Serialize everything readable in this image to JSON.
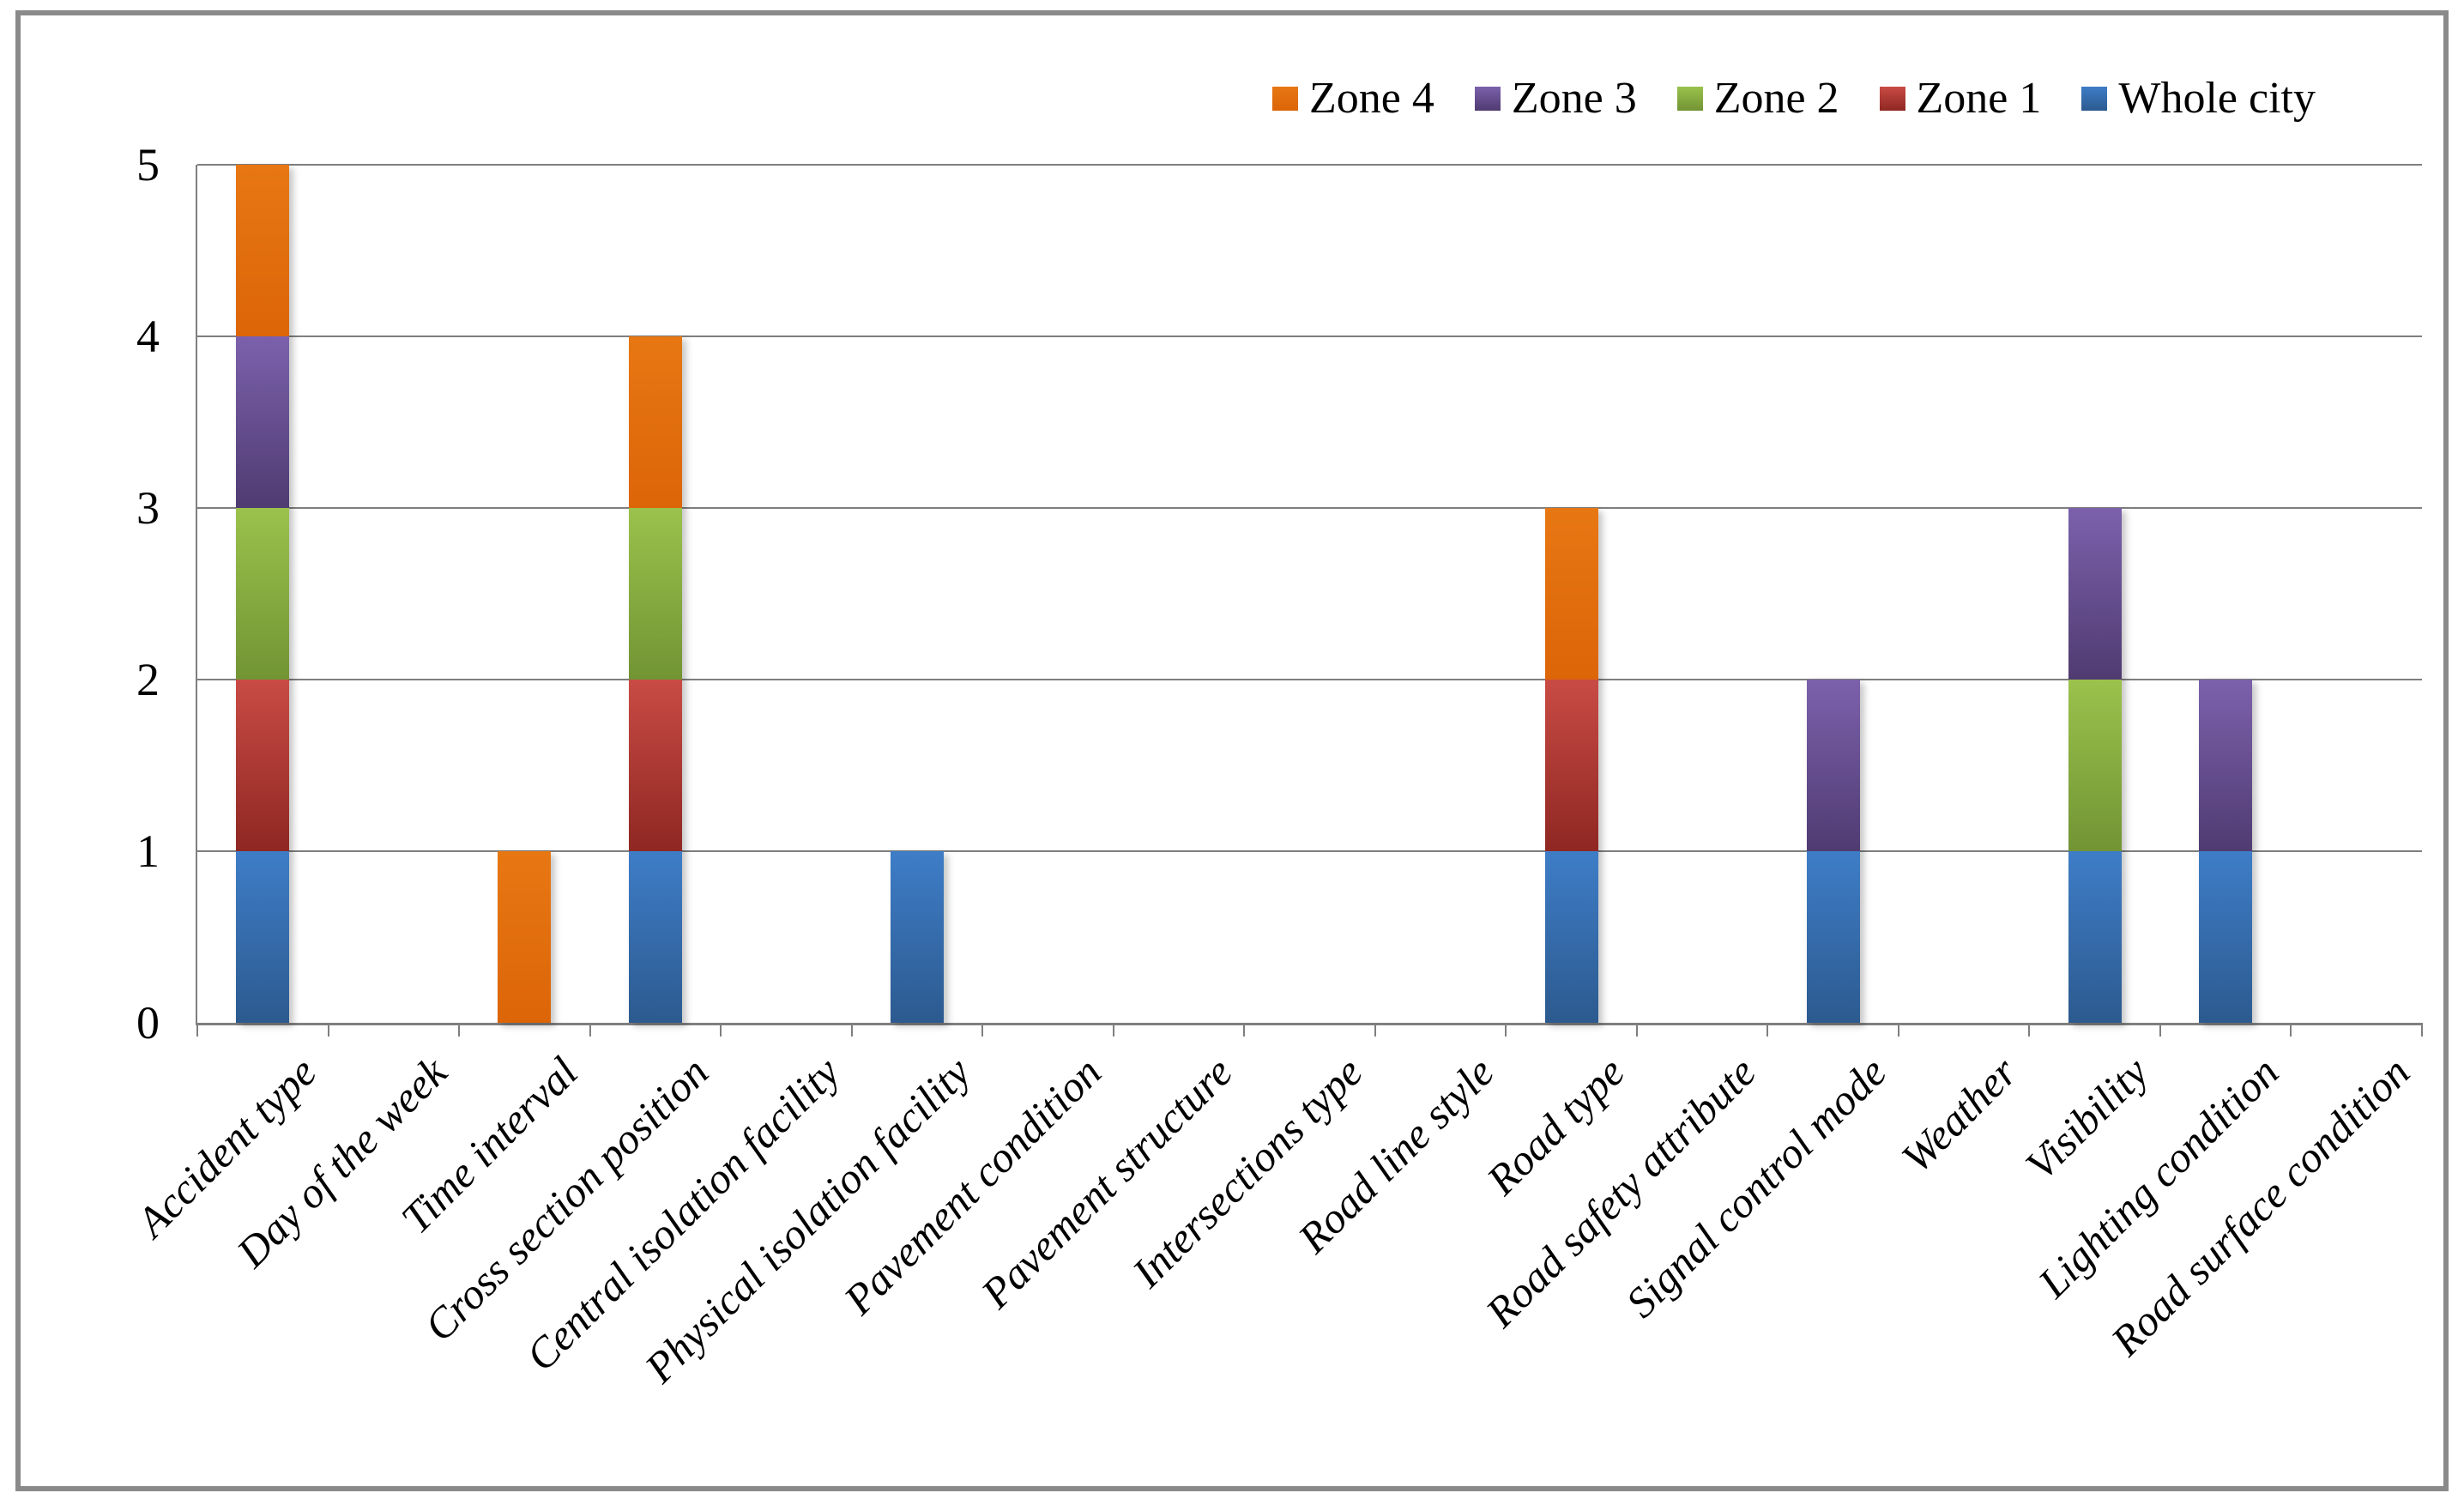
{
  "chart_data": {
    "type": "bar",
    "stacked": true,
    "title": "",
    "categories": [
      "Accident type",
      "Day of the week",
      "Time interval",
      "Cross section position",
      "Central isolation facility",
      "Physical isolation facility",
      "Pavement condition",
      "Pavement structure",
      "Intersections type",
      "Road line style",
      "Road type",
      "Road safety attribute",
      "Signal control mode",
      "Weather",
      "Visibility",
      "Lighting condition",
      "Road surface condition"
    ],
    "series": [
      {
        "name": "Whole city",
        "color_top": "#3E7DC7",
        "color_bottom": "#2C5A8F",
        "values": [
          1,
          0,
          0,
          1,
          0,
          1,
          0,
          0,
          0,
          0,
          1,
          0,
          1,
          0,
          1,
          1,
          0
        ]
      },
      {
        "name": "Zone 1",
        "color_top": "#C94B45",
        "color_bottom": "#8F2722",
        "values": [
          1,
          0,
          0,
          1,
          0,
          0,
          0,
          0,
          0,
          0,
          1,
          0,
          0,
          0,
          0,
          0,
          0
        ]
      },
      {
        "name": "Zone 2",
        "color_top": "#9AC24C",
        "color_bottom": "#729434",
        "values": [
          1,
          0,
          0,
          1,
          0,
          0,
          0,
          0,
          0,
          0,
          0,
          0,
          0,
          0,
          1,
          0,
          0
        ]
      },
      {
        "name": "Zone 3",
        "color_top": "#7B61AC",
        "color_bottom": "#503B71",
        "values": [
          1,
          0,
          0,
          0,
          0,
          0,
          0,
          0,
          0,
          0,
          0,
          0,
          1,
          0,
          1,
          1,
          0
        ]
      },
      {
        "name": "Zone 4",
        "color_top": "#E77713",
        "color_bottom": "#DC6508",
        "values": [
          1,
          0,
          1,
          1,
          0,
          0,
          0,
          0,
          0,
          0,
          1,
          0,
          0,
          0,
          0,
          0,
          0
        ]
      }
    ],
    "stack_totals": [
      5,
      0,
      1,
      4,
      0,
      1,
      0,
      0,
      0,
      0,
      3,
      0,
      2,
      0,
      3,
      2,
      0
    ],
    "y_axis": {
      "ticks": [
        "0",
        "1",
        "2",
        "3",
        "4",
        "5"
      ],
      "min": 0,
      "max": 5,
      "gridlines": true
    },
    "x_axis": {
      "label_rotation_deg": -45
    },
    "legend": {
      "position": "top-right",
      "entries": [
        "Zone 4",
        "Zone 3",
        "Zone 2",
        "Zone 1",
        "Whole city"
      ]
    }
  },
  "colors": {
    "gridline": "#7F7F7F",
    "axis": "#7F7F7F",
    "frame": "#8A8A8A",
    "background": "#FFFFFF",
    "text": "#000000"
  }
}
